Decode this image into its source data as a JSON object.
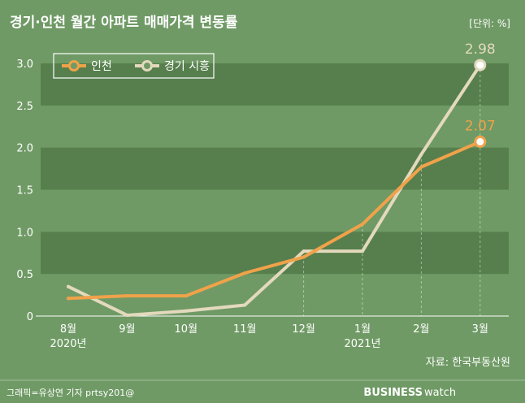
{
  "chart_data": {
    "type": "line",
    "title": "경기·인천 월간 아파트 매매가격 변동률",
    "unit": "[단위: %]",
    "categories": [
      "8월",
      "9월",
      "10월",
      "11월",
      "12월",
      "1월",
      "2월",
      "3월"
    ],
    "category_years": [
      "2020년",
      "",
      "",
      "",
      "",
      "2021년",
      "",
      ""
    ],
    "ylim": [
      0,
      3.0
    ],
    "yticks": [
      "0",
      "0.5",
      "1.0",
      "1.5",
      "2.0",
      "2.5",
      "3.0"
    ],
    "grid": "alternating horizontal bands",
    "legend_position": "top-left",
    "series": [
      {
        "name": "인천",
        "color": "#f0a24a",
        "values": [
          0.21,
          0.24,
          0.24,
          0.51,
          0.7,
          1.09,
          1.77,
          2.07
        ],
        "end_label": "2.07"
      },
      {
        "name": "경기 시흥",
        "color": "#e3d9bd",
        "values": [
          0.35,
          0.01,
          0.06,
          0.13,
          0.77,
          0.77,
          1.92,
          2.98
        ],
        "end_label": "2.98"
      }
    ],
    "source": "자료: 한국부동산원"
  },
  "footer": {
    "credit": "그래픽=유상연 기자 prtsy201@",
    "brand_bold": "BUSINESS",
    "brand_light": "watch"
  },
  "colors": {
    "background": "#6f9a65",
    "band_dark": "#567f4d",
    "text": "#ffffff"
  }
}
